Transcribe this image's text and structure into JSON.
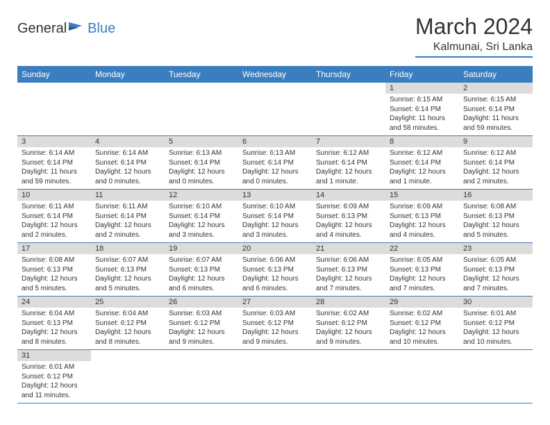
{
  "logo": {
    "word1": "General",
    "word2": "Blue"
  },
  "title": "March 2024",
  "location": "Kalmunai, Sri Lanka",
  "colors": {
    "header_bg": "#3b7ec0",
    "header_text": "#ffffff",
    "daynum_bg": "#dcdcdc",
    "border": "#3b7ec0",
    "text": "#333333",
    "background": "#ffffff"
  },
  "weekdays": [
    "Sunday",
    "Monday",
    "Tuesday",
    "Wednesday",
    "Thursday",
    "Friday",
    "Saturday"
  ],
  "weeks": [
    [
      null,
      null,
      null,
      null,
      null,
      {
        "n": "1",
        "sr": "Sunrise: 6:15 AM",
        "ss": "Sunset: 6:14 PM",
        "dl": "Daylight: 11 hours and 58 minutes."
      },
      {
        "n": "2",
        "sr": "Sunrise: 6:15 AM",
        "ss": "Sunset: 6:14 PM",
        "dl": "Daylight: 11 hours and 59 minutes."
      }
    ],
    [
      {
        "n": "3",
        "sr": "Sunrise: 6:14 AM",
        "ss": "Sunset: 6:14 PM",
        "dl": "Daylight: 11 hours and 59 minutes."
      },
      {
        "n": "4",
        "sr": "Sunrise: 6:14 AM",
        "ss": "Sunset: 6:14 PM",
        "dl": "Daylight: 12 hours and 0 minutes."
      },
      {
        "n": "5",
        "sr": "Sunrise: 6:13 AM",
        "ss": "Sunset: 6:14 PM",
        "dl": "Daylight: 12 hours and 0 minutes."
      },
      {
        "n": "6",
        "sr": "Sunrise: 6:13 AM",
        "ss": "Sunset: 6:14 PM",
        "dl": "Daylight: 12 hours and 0 minutes."
      },
      {
        "n": "7",
        "sr": "Sunrise: 6:12 AM",
        "ss": "Sunset: 6:14 PM",
        "dl": "Daylight: 12 hours and 1 minute."
      },
      {
        "n": "8",
        "sr": "Sunrise: 6:12 AM",
        "ss": "Sunset: 6:14 PM",
        "dl": "Daylight: 12 hours and 1 minute."
      },
      {
        "n": "9",
        "sr": "Sunrise: 6:12 AM",
        "ss": "Sunset: 6:14 PM",
        "dl": "Daylight: 12 hours and 2 minutes."
      }
    ],
    [
      {
        "n": "10",
        "sr": "Sunrise: 6:11 AM",
        "ss": "Sunset: 6:14 PM",
        "dl": "Daylight: 12 hours and 2 minutes."
      },
      {
        "n": "11",
        "sr": "Sunrise: 6:11 AM",
        "ss": "Sunset: 6:14 PM",
        "dl": "Daylight: 12 hours and 2 minutes."
      },
      {
        "n": "12",
        "sr": "Sunrise: 6:10 AM",
        "ss": "Sunset: 6:14 PM",
        "dl": "Daylight: 12 hours and 3 minutes."
      },
      {
        "n": "13",
        "sr": "Sunrise: 6:10 AM",
        "ss": "Sunset: 6:14 PM",
        "dl": "Daylight: 12 hours and 3 minutes."
      },
      {
        "n": "14",
        "sr": "Sunrise: 6:09 AM",
        "ss": "Sunset: 6:13 PM",
        "dl": "Daylight: 12 hours and 4 minutes."
      },
      {
        "n": "15",
        "sr": "Sunrise: 6:09 AM",
        "ss": "Sunset: 6:13 PM",
        "dl": "Daylight: 12 hours and 4 minutes."
      },
      {
        "n": "16",
        "sr": "Sunrise: 6:08 AM",
        "ss": "Sunset: 6:13 PM",
        "dl": "Daylight: 12 hours and 5 minutes."
      }
    ],
    [
      {
        "n": "17",
        "sr": "Sunrise: 6:08 AM",
        "ss": "Sunset: 6:13 PM",
        "dl": "Daylight: 12 hours and 5 minutes."
      },
      {
        "n": "18",
        "sr": "Sunrise: 6:07 AM",
        "ss": "Sunset: 6:13 PM",
        "dl": "Daylight: 12 hours and 5 minutes."
      },
      {
        "n": "19",
        "sr": "Sunrise: 6:07 AM",
        "ss": "Sunset: 6:13 PM",
        "dl": "Daylight: 12 hours and 6 minutes."
      },
      {
        "n": "20",
        "sr": "Sunrise: 6:06 AM",
        "ss": "Sunset: 6:13 PM",
        "dl": "Daylight: 12 hours and 6 minutes."
      },
      {
        "n": "21",
        "sr": "Sunrise: 6:06 AM",
        "ss": "Sunset: 6:13 PM",
        "dl": "Daylight: 12 hours and 7 minutes."
      },
      {
        "n": "22",
        "sr": "Sunrise: 6:05 AM",
        "ss": "Sunset: 6:13 PM",
        "dl": "Daylight: 12 hours and 7 minutes."
      },
      {
        "n": "23",
        "sr": "Sunrise: 6:05 AM",
        "ss": "Sunset: 6:13 PM",
        "dl": "Daylight: 12 hours and 7 minutes."
      }
    ],
    [
      {
        "n": "24",
        "sr": "Sunrise: 6:04 AM",
        "ss": "Sunset: 6:13 PM",
        "dl": "Daylight: 12 hours and 8 minutes."
      },
      {
        "n": "25",
        "sr": "Sunrise: 6:04 AM",
        "ss": "Sunset: 6:12 PM",
        "dl": "Daylight: 12 hours and 8 minutes."
      },
      {
        "n": "26",
        "sr": "Sunrise: 6:03 AM",
        "ss": "Sunset: 6:12 PM",
        "dl": "Daylight: 12 hours and 9 minutes."
      },
      {
        "n": "27",
        "sr": "Sunrise: 6:03 AM",
        "ss": "Sunset: 6:12 PM",
        "dl": "Daylight: 12 hours and 9 minutes."
      },
      {
        "n": "28",
        "sr": "Sunrise: 6:02 AM",
        "ss": "Sunset: 6:12 PM",
        "dl": "Daylight: 12 hours and 9 minutes."
      },
      {
        "n": "29",
        "sr": "Sunrise: 6:02 AM",
        "ss": "Sunset: 6:12 PM",
        "dl": "Daylight: 12 hours and 10 minutes."
      },
      {
        "n": "30",
        "sr": "Sunrise: 6:01 AM",
        "ss": "Sunset: 6:12 PM",
        "dl": "Daylight: 12 hours and 10 minutes."
      }
    ],
    [
      {
        "n": "31",
        "sr": "Sunrise: 6:01 AM",
        "ss": "Sunset: 6:12 PM",
        "dl": "Daylight: 12 hours and 11 minutes."
      },
      null,
      null,
      null,
      null,
      null,
      null
    ]
  ]
}
